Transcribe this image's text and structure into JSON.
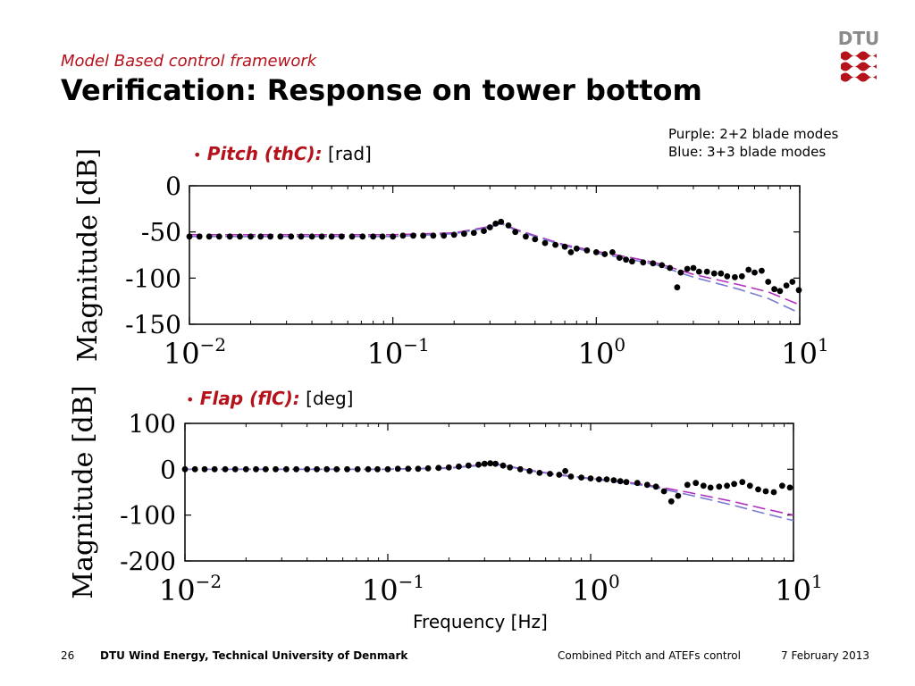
{
  "header": {
    "section": "Model Based control framework",
    "title": "Verification: Response on tower bottom"
  },
  "legend": {
    "line1": "Purple: 2+2 blade modes",
    "line2": "Blue: 3+3 blade modes"
  },
  "xlabel": "Frequency [Hz]",
  "footer": {
    "page": "26",
    "org": "DTU Wind Energy, Technical University of Denmark",
    "talk": "Combined Pitch and ATEFs control",
    "date": "7 February 2013"
  },
  "logo_text": "DTU",
  "colors": {
    "accent": "#b5121b",
    "purple": "#b030c0",
    "blue": "#7a7ad0",
    "points": "#000000"
  },
  "chart_data": [
    {
      "type": "line",
      "panel_label": {
        "name": "Pitch (thC):",
        "unit": "[rad]"
      },
      "ylabel": "Magnitude [dB]",
      "xscale": "log",
      "xlim": [
        0.01,
        10
      ],
      "ylim": [
        -150,
        0
      ],
      "yticks": [
        0,
        -50,
        -100,
        -150
      ],
      "yticklabels": [
        "0",
        "-50",
        "-100",
        "-150"
      ],
      "xticks": [
        0.01,
        0.1,
        1,
        10
      ],
      "xticklabels": [
        "10^-2",
        "10^-1",
        "10^0",
        "10^1"
      ],
      "series": [
        {
          "role": "measured",
          "style": "points",
          "x": [
            0.01,
            0.0112,
            0.0125,
            0.014,
            0.0158,
            0.0177,
            0.02,
            0.0224,
            0.025,
            0.028,
            0.0316,
            0.0354,
            0.04,
            0.0447,
            0.05,
            0.056,
            0.063,
            0.071,
            0.08,
            0.089,
            0.1,
            0.112,
            0.126,
            0.141,
            0.158,
            0.178,
            0.2,
            0.224,
            0.25,
            0.28,
            0.3,
            0.32,
            0.34,
            0.37,
            0.4,
            0.45,
            0.5,
            0.56,
            0.63,
            0.7,
            0.75,
            0.8,
            0.9,
            1.0,
            1.1,
            1.2,
            1.3,
            1.4,
            1.5,
            1.7,
            1.9,
            2.1,
            2.3,
            2.5,
            2.6,
            2.8,
            3.0,
            3.2,
            3.5,
            3.8,
            4.1,
            4.4,
            4.8,
            5.2,
            5.6,
            6.0,
            6.5,
            7.0,
            7.5,
            8.0,
            8.6,
            9.2,
            9.9
          ],
          "y": [
            -55,
            -55,
            -55,
            -55,
            -55,
            -55,
            -55,
            -55,
            -55,
            -55,
            -55,
            -55,
            -55,
            -55,
            -55,
            -55,
            -55,
            -55,
            -55,
            -55,
            -55,
            -54,
            -54,
            -54,
            -54,
            -54,
            -53,
            -52,
            -51,
            -49,
            -45,
            -41,
            -39,
            -43,
            -50,
            -55,
            -58,
            -62,
            -64,
            -66,
            -72,
            -68,
            -70,
            -72,
            -74,
            -72,
            -78,
            -80,
            -82,
            -83,
            -84,
            -86,
            -89,
            -110,
            -94,
            -90,
            -89,
            -93,
            -93,
            -95,
            -95,
            -98,
            -99,
            -98,
            -91,
            -94,
            -92,
            -104,
            -112,
            -114,
            -108,
            -104,
            -113
          ]
        },
        {
          "name": "Purple: 2+2 blade modes",
          "style": "dashed",
          "color": "#b030c0",
          "x": [
            0.01,
            0.02,
            0.05,
            0.1,
            0.2,
            0.3,
            0.34,
            0.4,
            0.5,
            0.7,
            1.0,
            1.5,
            2.0,
            3.0,
            5.0,
            7.0,
            10.0
          ],
          "y": [
            -53,
            -53,
            -53,
            -53,
            -51,
            -44,
            -40,
            -47,
            -54,
            -64,
            -71,
            -78,
            -84,
            -96,
            -107,
            -115,
            -129
          ]
        },
        {
          "name": "Blue: 3+3 blade modes",
          "style": "dashed",
          "color": "#7a7ad0",
          "x": [
            0.01,
            0.02,
            0.05,
            0.1,
            0.2,
            0.3,
            0.34,
            0.4,
            0.5,
            0.7,
            1.0,
            1.5,
            2.0,
            3.0,
            5.0,
            7.0,
            10.0
          ],
          "y": [
            -55,
            -55,
            -55,
            -55,
            -52,
            -45,
            -41,
            -48,
            -55,
            -65,
            -73,
            -80,
            -86,
            -99,
            -112,
            -122,
            -138
          ]
        }
      ]
    },
    {
      "type": "line",
      "panel_label": {
        "name": "Flap (flC):",
        "unit": "[deg]"
      },
      "ylabel": "Magnitude [dB]",
      "xscale": "log",
      "xlim": [
        0.01,
        10
      ],
      "ylim": [
        -200,
        100
      ],
      "yticks": [
        100,
        0,
        -100,
        -200
      ],
      "yticklabels": [
        "100",
        "0",
        "-100",
        "-200"
      ],
      "xticks": [
        0.01,
        0.1,
        1,
        10
      ],
      "xticklabels": [
        "10^-2",
        "10^-1",
        "10^0",
        "10^1"
      ],
      "series": [
        {
          "role": "measured",
          "style": "points",
          "x": [
            0.01,
            0.0112,
            0.0125,
            0.014,
            0.0158,
            0.0177,
            0.02,
            0.0224,
            0.025,
            0.028,
            0.0316,
            0.0354,
            0.04,
            0.0447,
            0.05,
            0.056,
            0.063,
            0.071,
            0.08,
            0.089,
            0.1,
            0.112,
            0.126,
            0.141,
            0.158,
            0.178,
            0.2,
            0.224,
            0.25,
            0.28,
            0.3,
            0.32,
            0.34,
            0.37,
            0.4,
            0.45,
            0.5,
            0.56,
            0.63,
            0.7,
            0.75,
            0.8,
            0.9,
            1.0,
            1.1,
            1.2,
            1.3,
            1.4,
            1.5,
            1.7,
            1.9,
            2.1,
            2.3,
            2.5,
            2.7,
            3.0,
            3.3,
            3.6,
            3.9,
            4.3,
            4.7,
            5.1,
            5.6,
            6.1,
            6.7,
            7.3,
            8.0,
            8.8,
            9.6
          ],
          "y": [
            0,
            0,
            0,
            0,
            0,
            0,
            0,
            0,
            0,
            0,
            0,
            0,
            0,
            0,
            0,
            0,
            0,
            0,
            0,
            0,
            0,
            1,
            1,
            1,
            2,
            3,
            4,
            6,
            8,
            10,
            12,
            13,
            12,
            8,
            4,
            0,
            -4,
            -8,
            -10,
            -12,
            -4,
            -16,
            -18,
            -20,
            -22,
            -22,
            -24,
            -26,
            -28,
            -30,
            -34,
            -38,
            -48,
            -70,
            -58,
            -34,
            -30,
            -36,
            -40,
            -38,
            -36,
            -32,
            -28,
            -36,
            -44,
            -48,
            -50,
            -36,
            -40
          ]
        },
        {
          "name": "Purple: 2+2 blade modes",
          "style": "dashed",
          "color": "#b030c0",
          "x": [
            0.01,
            0.05,
            0.1,
            0.2,
            0.3,
            0.34,
            0.4,
            0.5,
            0.7,
            1.0,
            1.5,
            2.0,
            3.0,
            5.0,
            7.0,
            10.0
          ],
          "y": [
            0,
            0,
            0,
            3,
            10,
            12,
            6,
            -2,
            -12,
            -20,
            -28,
            -36,
            -50,
            -70,
            -85,
            -100
          ],
          "note": "purple dashed model response"
        },
        {
          "name": "Blue: 3+3 blade modes",
          "style": "dashed",
          "color": "#7a7ad0",
          "x": [
            0.01,
            0.05,
            0.1,
            0.2,
            0.3,
            0.34,
            0.4,
            0.5,
            0.7,
            1.0,
            1.5,
            2.0,
            3.0,
            5.0,
            7.0,
            10.0
          ],
          "y": [
            0,
            0,
            0,
            2,
            9,
            11,
            5,
            -3,
            -13,
            -21,
            -30,
            -38,
            -55,
            -78,
            -95,
            -112
          ]
        }
      ]
    }
  ]
}
